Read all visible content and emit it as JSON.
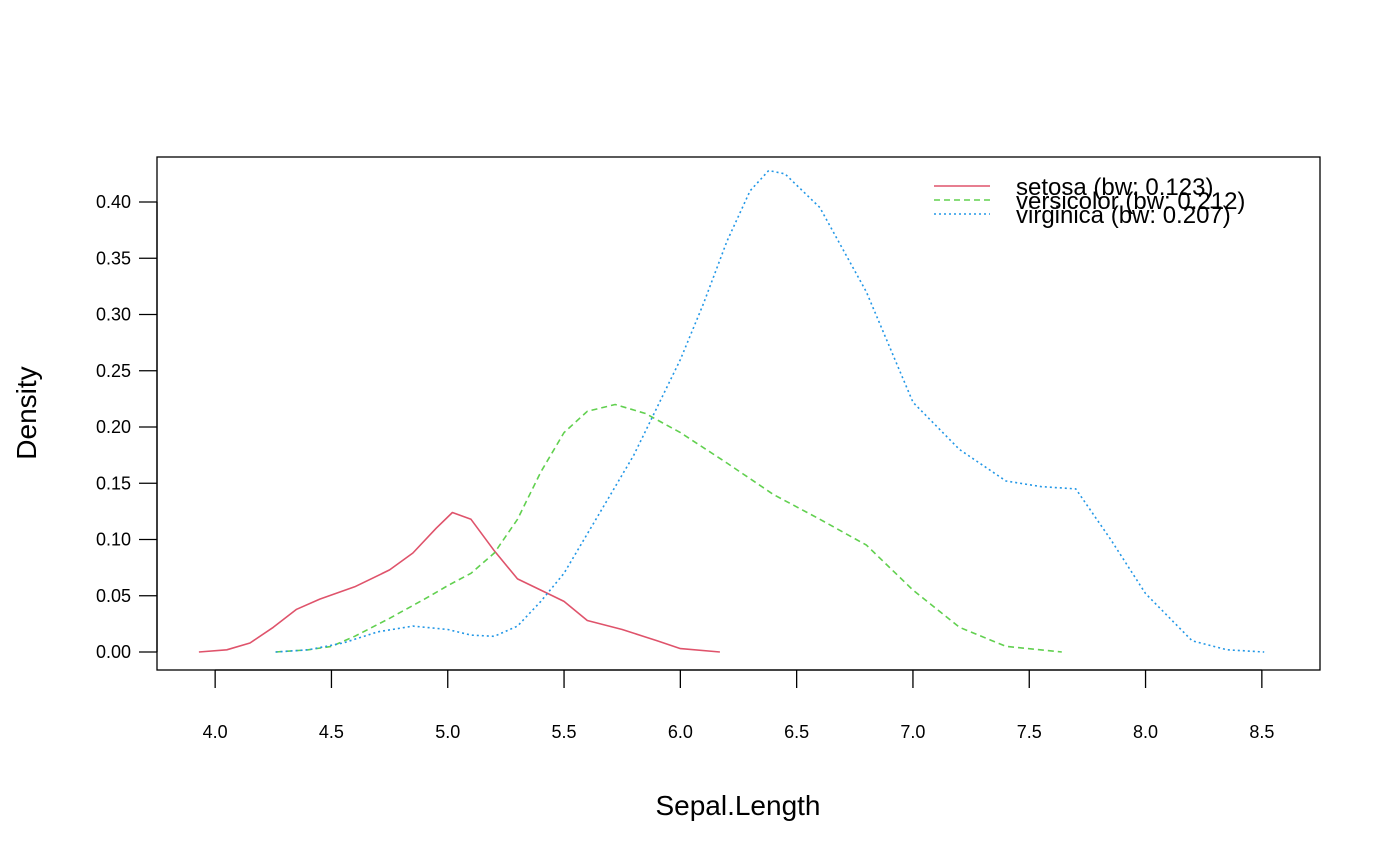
{
  "chart_data": {
    "type": "line",
    "title": "",
    "xlabel": "Sepal.Length",
    "ylabel": "Density",
    "xlim": [
      3.75,
      8.75
    ],
    "ylim": [
      -0.016,
      0.44
    ],
    "x_ticks": [
      "4.0",
      "4.5",
      "5.0",
      "5.5",
      "6.0",
      "6.5",
      "7.0",
      "7.5",
      "8.0",
      "8.5"
    ],
    "x_tick_values": [
      4.0,
      4.5,
      5.0,
      5.5,
      6.0,
      6.5,
      7.0,
      7.5,
      8.0,
      8.5
    ],
    "y_ticks": [
      "0.00",
      "0.05",
      "0.10",
      "0.15",
      "0.20",
      "0.25",
      "0.30",
      "0.35",
      "0.40"
    ],
    "y_tick_values": [
      0.0,
      0.05,
      0.1,
      0.15,
      0.2,
      0.25,
      0.3,
      0.35,
      0.4
    ],
    "grid": false,
    "legend_position": "top-right",
    "series": [
      {
        "name": "setosa (bw: 0.123)",
        "color": "#DF536B",
        "dash": "solid",
        "points": [
          [
            3.93,
            0.0
          ],
          [
            4.05,
            0.002
          ],
          [
            4.15,
            0.008
          ],
          [
            4.25,
            0.022
          ],
          [
            4.35,
            0.038
          ],
          [
            4.45,
            0.047
          ],
          [
            4.6,
            0.058
          ],
          [
            4.75,
            0.073
          ],
          [
            4.85,
            0.088
          ],
          [
            4.95,
            0.11
          ],
          [
            5.02,
            0.124
          ],
          [
            5.1,
            0.118
          ],
          [
            5.2,
            0.09
          ],
          [
            5.3,
            0.065
          ],
          [
            5.4,
            0.055
          ],
          [
            5.5,
            0.045
          ],
          [
            5.6,
            0.028
          ],
          [
            5.75,
            0.02
          ],
          [
            5.9,
            0.01
          ],
          [
            6.0,
            0.003
          ],
          [
            6.17,
            0.0
          ]
        ]
      },
      {
        "name": "versicolor (bw: 0.212)",
        "color": "#61D04F",
        "dash": "dashed",
        "points": [
          [
            4.26,
            0.0
          ],
          [
            4.4,
            0.002
          ],
          [
            4.5,
            0.005
          ],
          [
            4.6,
            0.014
          ],
          [
            4.75,
            0.03
          ],
          [
            4.9,
            0.047
          ],
          [
            5.0,
            0.059
          ],
          [
            5.1,
            0.07
          ],
          [
            5.2,
            0.088
          ],
          [
            5.3,
            0.118
          ],
          [
            5.4,
            0.16
          ],
          [
            5.5,
            0.195
          ],
          [
            5.6,
            0.214
          ],
          [
            5.72,
            0.22
          ],
          [
            5.85,
            0.212
          ],
          [
            6.0,
            0.195
          ],
          [
            6.2,
            0.168
          ],
          [
            6.4,
            0.14
          ],
          [
            6.6,
            0.118
          ],
          [
            6.8,
            0.095
          ],
          [
            7.0,
            0.055
          ],
          [
            7.2,
            0.022
          ],
          [
            7.4,
            0.005
          ],
          [
            7.64,
            0.0
          ]
        ]
      },
      {
        "name": "virginica (bw: 0.207)",
        "color": "#2297E6",
        "dash": "dotted",
        "points": [
          [
            4.26,
            0.0
          ],
          [
            4.4,
            0.002
          ],
          [
            4.55,
            0.008
          ],
          [
            4.7,
            0.018
          ],
          [
            4.85,
            0.023
          ],
          [
            5.0,
            0.02
          ],
          [
            5.1,
            0.015
          ],
          [
            5.2,
            0.014
          ],
          [
            5.3,
            0.023
          ],
          [
            5.4,
            0.045
          ],
          [
            5.5,
            0.07
          ],
          [
            5.6,
            0.105
          ],
          [
            5.7,
            0.14
          ],
          [
            5.8,
            0.175
          ],
          [
            6.0,
            0.26
          ],
          [
            6.1,
            0.31
          ],
          [
            6.2,
            0.365
          ],
          [
            6.3,
            0.41
          ],
          [
            6.38,
            0.428
          ],
          [
            6.45,
            0.425
          ],
          [
            6.6,
            0.395
          ],
          [
            6.8,
            0.32
          ],
          [
            7.0,
            0.222
          ],
          [
            7.2,
            0.18
          ],
          [
            7.4,
            0.152
          ],
          [
            7.55,
            0.147
          ],
          [
            7.7,
            0.145
          ],
          [
            7.85,
            0.1
          ],
          [
            8.0,
            0.052
          ],
          [
            8.2,
            0.01
          ],
          [
            8.35,
            0.002
          ],
          [
            8.51,
            0.0
          ]
        ]
      }
    ]
  }
}
